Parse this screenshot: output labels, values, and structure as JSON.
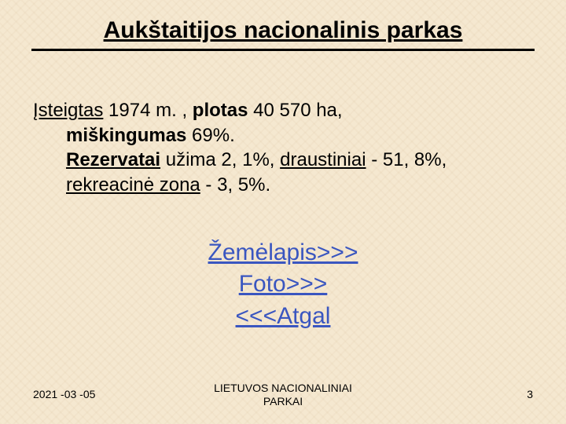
{
  "title": "Aukštaitijos nacionalinis parkas",
  "body": {
    "isteigtas_label": "Įsteigtas",
    "isteigtas_value": " 1974 m. , ",
    "plotas_label": "plotas",
    "plotas_value": " 40 570 ha, ",
    "miskingumas_label": "miškingumas",
    "miskingumas_value": " 69%. ",
    "rezervatai_label": "Rezervatai",
    "rezervatai_value": " užima 2, 1%, ",
    "draustiniai_label": "draustiniai",
    "draustiniai_value": " - 51, 8%, ",
    "rekreacine_label": "rekreacinė zona",
    "rekreacine_value": " - 3, 5%. "
  },
  "links": {
    "map": "Žemėlapis>>>",
    "photo": "Foto>>>",
    "back": "<<<Atgal"
  },
  "footer": {
    "date": "2021 -03 -05",
    "center_line1": "LIETUVOS NACIONALINIAI",
    "center_line2": "PARKAI",
    "page": "3"
  },
  "colors": {
    "background": "#f5e8d0",
    "text": "#000000",
    "link": "#3a56c0"
  }
}
